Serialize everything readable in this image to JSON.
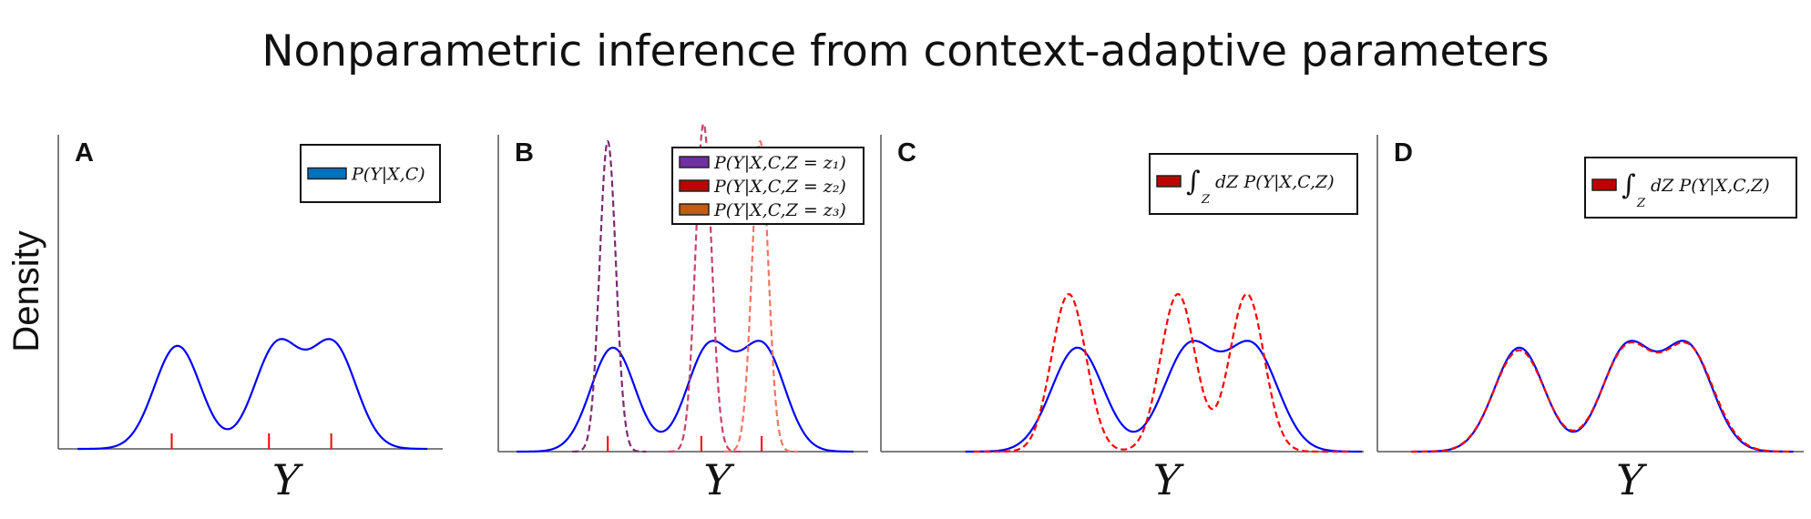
{
  "title": "Nonparametric inference from context-adaptive parameters",
  "ylabel": "Density",
  "chart_data": [
    {
      "panel": "A",
      "type": "line",
      "xlabel": "Y",
      "ylabel": "Density",
      "xlim": [
        -0.1,
        9.9
      ],
      "ylim": [
        0,
        1
      ],
      "grid": false,
      "legend_position": "top-right",
      "legend": [
        {
          "label": "P(Y|X,C)",
          "color": "#0070c0"
        }
      ],
      "series": [
        {
          "color": "#0000ff",
          "style": "solid",
          "range": [
            0.4,
            9.5
          ],
          "components": [
            {
              "mean": 3.0,
              "sd": 0.6,
              "amp": 0.33
            },
            {
              "mean": 5.6,
              "sd": 0.6,
              "amp": 0.33
            },
            {
              "mean": 7.05,
              "sd": 0.6,
              "amp": 0.33
            }
          ]
        }
      ],
      "rug": {
        "color": "#ff0000",
        "x": [
          2.85,
          5.38,
          7.0
        ]
      }
    },
    {
      "panel": "B",
      "type": "line",
      "xlabel": "Y",
      "ylabel": "",
      "xlim": [
        -0.1,
        9.9
      ],
      "ylim": [
        0,
        1
      ],
      "grid": false,
      "legend_position": "top-right",
      "legend": [
        {
          "label": "P(Y|X,C,Z = z₁)",
          "color": "#7030a0"
        },
        {
          "label": "P(Y|X,C,Z = z₂)",
          "color": "#c00000"
        },
        {
          "label": "P(Y|X,C,Z = z₃)",
          "color": "#c55a11"
        }
      ],
      "series": [
        {
          "color": "#0000ff",
          "style": "solid",
          "range": [
            0.4,
            9.5
          ],
          "components": [
            {
              "mean": 3.0,
              "sd": 0.6,
              "amp": 0.33
            },
            {
              "mean": 5.6,
              "sd": 0.6,
              "amp": 0.33
            },
            {
              "mean": 7.05,
              "sd": 0.6,
              "amp": 0.33
            }
          ]
        },
        {
          "color": "#7a2a6e",
          "style": "dashed",
          "range": [
            1.9,
            3.9
          ],
          "components": [
            {
              "mean": 2.86,
              "sd": 0.22,
              "amp": 0.985
            }
          ]
        },
        {
          "color": "#c8406a",
          "style": "dashed",
          "range": [
            4.5,
            6.5
          ],
          "components": [
            {
              "mean": 5.45,
              "sd": 0.22,
              "amp": 1.04
            }
          ]
        },
        {
          "color": "#f07565",
          "style": "dashed",
          "range": [
            6.0,
            8.0
          ],
          "components": [
            {
              "mean": 6.98,
              "sd": 0.22,
              "amp": 0.985
            }
          ]
        }
      ],
      "rug": {
        "color": "#ff0000",
        "x": [
          2.86,
          5.39,
          7.02
        ]
      }
    },
    {
      "panel": "C",
      "type": "line",
      "xlabel": "Y",
      "ylabel": "",
      "xlim": [
        -1.56,
        9.64
      ],
      "ylim": [
        0,
        1
      ],
      "grid": false,
      "legend_position": "top-right",
      "legend": [
        {
          "symbol": "∫",
          "subscript": "Z",
          "label": "dZ P(Y|X,C,Z)",
          "color": "#c00000"
        }
      ],
      "series": [
        {
          "color": "#0000ff",
          "style": "solid",
          "range": [
            0.4,
            9.6
          ],
          "components": [
            {
              "mean": 3.0,
              "sd": 0.6,
              "amp": 0.33
            },
            {
              "mean": 5.6,
              "sd": 0.6,
              "amp": 0.33
            },
            {
              "mean": 7.05,
              "sd": 0.6,
              "amp": 0.33
            }
          ]
        },
        {
          "color": "#ff0000",
          "style": "dashed",
          "range": [
            0.6,
            9.3
          ],
          "components": [
            {
              "mean": 2.8,
              "sd": 0.4,
              "amp": 0.5
            },
            {
              "mean": 5.33,
              "sd": 0.4,
              "amp": 0.5
            },
            {
              "mean": 6.93,
              "sd": 0.4,
              "amp": 0.5
            }
          ]
        }
      ]
    },
    {
      "panel": "D",
      "type": "line",
      "xlabel": "Y",
      "ylabel": "",
      "xlim": [
        -0.42,
        9.85
      ],
      "ylim": [
        0,
        1
      ],
      "grid": false,
      "legend_position": "top-right",
      "legend": [
        {
          "symbol": "∫",
          "subscript": "Z",
          "label": "dZ P(Y|X,C,Z)",
          "color": "#c00000"
        }
      ],
      "series": [
        {
          "color": "#0000ff",
          "style": "solid",
          "range": [
            0.4,
            9.6
          ],
          "components": [
            {
              "mean": 3.0,
              "sd": 0.6,
              "amp": 0.33
            },
            {
              "mean": 5.6,
              "sd": 0.6,
              "amp": 0.33
            },
            {
              "mean": 7.05,
              "sd": 0.6,
              "amp": 0.33
            }
          ]
        },
        {
          "color": "#ff0000",
          "style": "dashed",
          "range": [
            0.4,
            9.6
          ],
          "components": [
            {
              "mean": 3.0,
              "sd": 0.61,
              "amp": 0.322
            },
            {
              "mean": 5.6,
              "sd": 0.61,
              "amp": 0.325
            },
            {
              "mean": 7.07,
              "sd": 0.61,
              "amp": 0.325
            }
          ]
        }
      ]
    }
  ]
}
